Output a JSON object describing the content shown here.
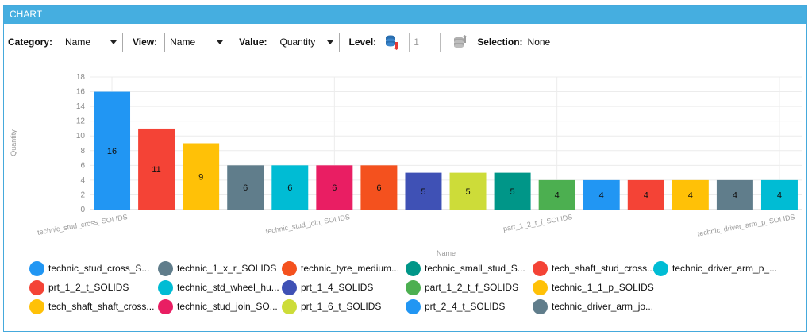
{
  "panel": {
    "title": "CHART"
  },
  "toolbar": {
    "category_label": "Category:",
    "category_value": "Name",
    "view_label": "View:",
    "view_value": "Name",
    "value_label": "Value:",
    "value_value": "Quantity",
    "level_label": "Level:",
    "level_value": "1",
    "selection_label": "Selection:",
    "selection_value": "None"
  },
  "chart_data": {
    "type": "bar",
    "title": "",
    "xlabel": "Name",
    "ylabel": "Quantity",
    "ylim": [
      0,
      18
    ],
    "yticks": [
      0,
      2,
      4,
      6,
      8,
      10,
      12,
      14,
      16,
      18
    ],
    "grid": true,
    "legend_position": "bottom",
    "categories": [
      "technic_stud_cross_SOLIDS",
      "prt_1_2_t_SOLIDS",
      "tech_shaft_shaft_cross...",
      "technic_1_x_r_SOLIDS",
      "technic_std_wheel_hu...",
      "technic_stud_join_SO...",
      "technic_tyre_medium...",
      "prt_1_4_SOLIDS",
      "prt_1_6_t_SOLIDS",
      "technic_small_stud_S...",
      "part_1_2_t_f_SOLIDS",
      "prt_2_4_t_SOLIDS",
      "tech_shaft_stud_cross...",
      "technic_1_1_p_SOLIDS",
      "technic_driver_arm_jo...",
      "technic_driver_arm_p_..."
    ],
    "values": [
      16,
      11,
      9,
      6,
      6,
      6,
      6,
      5,
      5,
      5,
      4,
      4,
      4,
      4,
      4,
      4
    ],
    "colors": [
      "#2196f3",
      "#f44336",
      "#ffc107",
      "#607d8b",
      "#00bcd4",
      "#e91e63",
      "#f4511e",
      "#3f51b5",
      "#cddc39",
      "#009688",
      "#4caf50",
      "#2196f3",
      "#f44336",
      "#ffc107",
      "#607d8b",
      "#00bcd4"
    ],
    "x_tick_labels": [
      {
        "index": 0,
        "text": "technic_stud_cross_SOLIDS"
      },
      {
        "index": 5,
        "text": "technic_stud_join_SOLIDS"
      },
      {
        "index": 10,
        "text": "part_1_2_t_f_SOLIDS"
      },
      {
        "index": 15,
        "text": "technic_driver_arm_p_SOLIDS"
      }
    ]
  },
  "legend": {
    "columns": [
      [
        "technic_stud_cross_S...",
        "prt_1_2_t_SOLIDS",
        "tech_shaft_shaft_cross..."
      ],
      [
        "technic_1_x_r_SOLIDS",
        "technic_std_wheel_hu...",
        "technic_stud_join_SO..."
      ],
      [
        "technic_tyre_medium...",
        "prt_1_4_SOLIDS",
        "prt_1_6_t_SOLIDS"
      ],
      [
        "technic_small_stud_S...",
        "part_1_2_t_f_SOLIDS",
        "prt_2_4_t_SOLIDS"
      ],
      [
        "tech_shaft_stud_cross...",
        "technic_1_1_p_SOLIDS",
        "technic_driver_arm_jo..."
      ],
      [
        "technic_driver_arm_p_..."
      ]
    ],
    "colors": [
      [
        "#2196f3",
        "#f44336",
        "#ffc107"
      ],
      [
        "#607d8b",
        "#00bcd4",
        "#e91e63"
      ],
      [
        "#f4511e",
        "#3f51b5",
        "#cddc39"
      ],
      [
        "#009688",
        "#4caf50",
        "#2196f3"
      ],
      [
        "#f44336",
        "#ffc107",
        "#607d8b"
      ],
      [
        "#00bcd4"
      ]
    ]
  }
}
